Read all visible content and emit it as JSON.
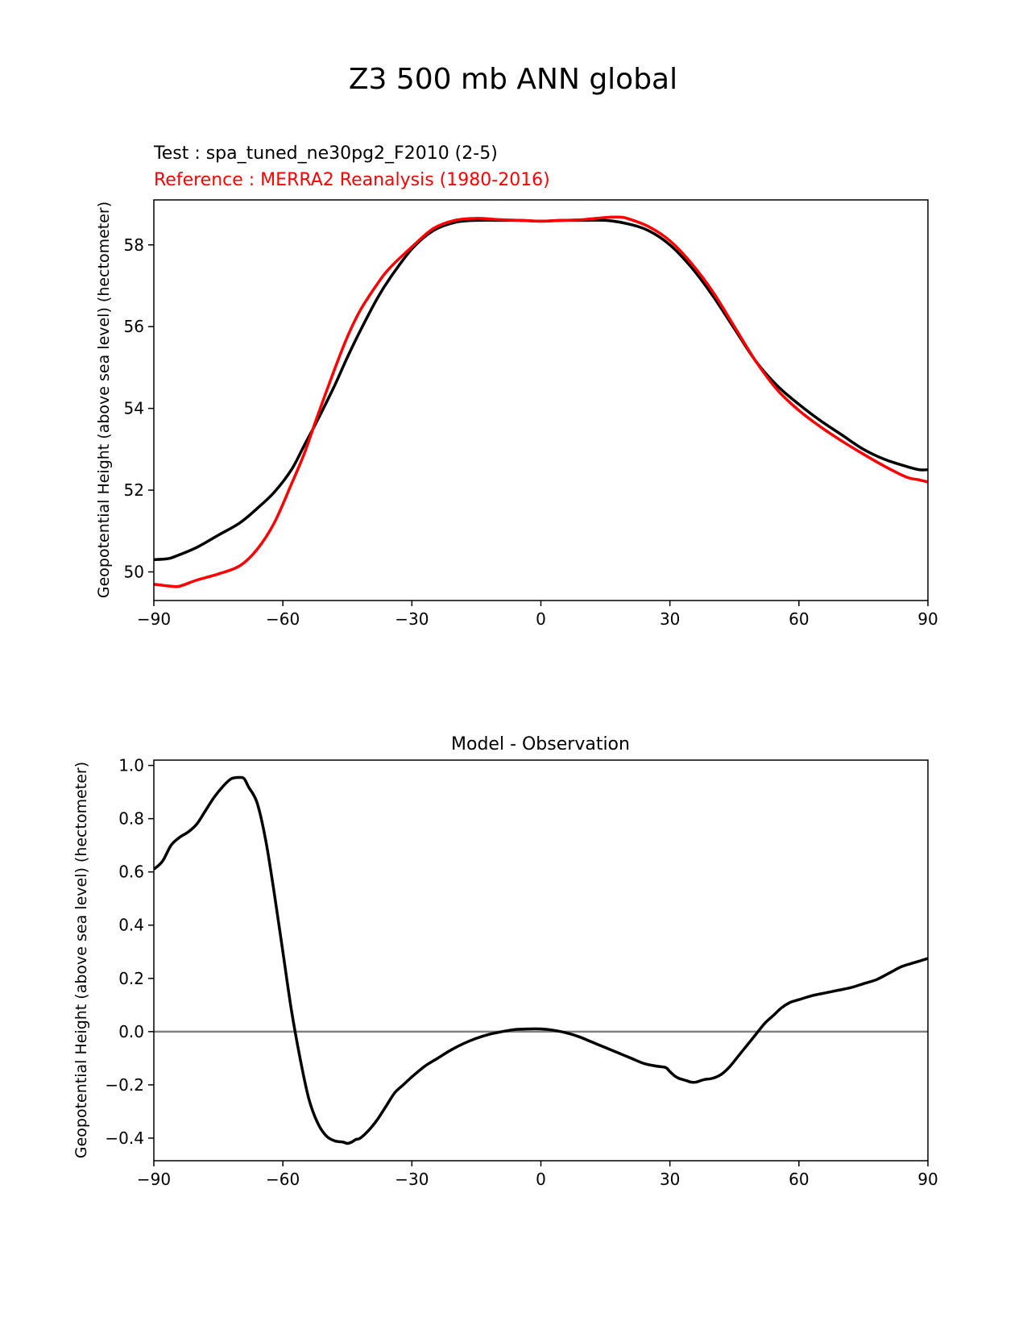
{
  "figure": {
    "title": "Z3 500 mb ANN global"
  },
  "chart_data": [
    {
      "type": "line",
      "test_label": "Test : spa_tuned_ne30pg2_F2010 (2-5)",
      "reference_label": "Reference : MERRA2 Reanalysis (1980-2016)",
      "ylabel": "Geopotential Height (above sea level) (hectometer)",
      "xlim": [
        -90,
        90
      ],
      "ylim": [
        49.3,
        59.1
      ],
      "xticks": [
        -90,
        -60,
        -30,
        0,
        30,
        60,
        90
      ],
      "xtick_labels": [
        "−90",
        "−60",
        "−30",
        "0",
        "30",
        "60",
        "90"
      ],
      "yticks": [
        50,
        52,
        54,
        56,
        58
      ],
      "ytick_labels": [
        "50",
        "52",
        "54",
        "56",
        "58"
      ],
      "series": [
        {
          "color": "#000000",
          "x": [
            -90,
            -87,
            -85,
            -80,
            -75,
            -70,
            -66,
            -62,
            -58,
            -55,
            -52,
            -48,
            -45,
            -42,
            -38,
            -35,
            -30,
            -25,
            -20,
            -15,
            -10,
            -5,
            0,
            5,
            10,
            15,
            20,
            25,
            30,
            35,
            40,
            45,
            50,
            55,
            60,
            65,
            70,
            75,
            80,
            85,
            88,
            90
          ],
          "y": [
            50.3,
            50.32,
            50.38,
            50.6,
            50.9,
            51.2,
            51.55,
            51.95,
            52.5,
            53.1,
            53.7,
            54.55,
            55.25,
            55.9,
            56.7,
            57.2,
            57.9,
            58.35,
            58.55,
            58.6,
            58.6,
            58.6,
            58.58,
            58.6,
            58.6,
            58.6,
            58.52,
            58.35,
            58.0,
            57.45,
            56.75,
            55.95,
            55.15,
            54.55,
            54.1,
            53.7,
            53.35,
            53.0,
            52.75,
            52.58,
            52.5,
            52.5
          ]
        },
        {
          "color": "#ff0000",
          "x": [
            -90,
            -86,
            -84,
            -80,
            -75,
            -70,
            -66,
            -62,
            -58,
            -55,
            -52,
            -48,
            -45,
            -42,
            -38,
            -35,
            -30,
            -25,
            -20,
            -15,
            -10,
            -5,
            0,
            5,
            10,
            15,
            18,
            20,
            25,
            30,
            35,
            40,
            45,
            50,
            55,
            60,
            65,
            70,
            75,
            80,
            85,
            88,
            90
          ],
          "y": [
            49.7,
            49.65,
            49.65,
            49.8,
            49.95,
            50.15,
            50.55,
            51.2,
            52.15,
            52.9,
            53.8,
            54.95,
            55.75,
            56.4,
            57.05,
            57.45,
            57.95,
            58.4,
            58.6,
            58.65,
            58.62,
            58.6,
            58.58,
            58.6,
            58.62,
            58.67,
            58.68,
            58.65,
            58.45,
            58.1,
            57.55,
            56.85,
            56.0,
            55.15,
            54.45,
            53.95,
            53.55,
            53.2,
            52.88,
            52.58,
            52.32,
            52.25,
            52.2
          ]
        }
      ]
    },
    {
      "type": "line",
      "title": "Model - Observation",
      "ylabel": "Geopotential Height (above sea level) (hectometer)",
      "xlim": [
        -90,
        90
      ],
      "ylim": [
        -0.485,
        1.02
      ],
      "xticks": [
        -90,
        -60,
        -30,
        0,
        30,
        60,
        90
      ],
      "xtick_labels": [
        "−90",
        "−60",
        "−30",
        "0",
        "30",
        "60",
        "90"
      ],
      "yticks": [
        -0.4,
        -0.2,
        0.0,
        0.2,
        0.4,
        0.6,
        0.8,
        1.0
      ],
      "ytick_labels": [
        "−0.4",
        "−0.2",
        "0.0",
        "0.2",
        "0.4",
        "0.6",
        "0.8",
        "1.0"
      ],
      "zero_line": true,
      "series": [
        {
          "color": "#000000",
          "x": [
            -90,
            -88,
            -86,
            -84,
            -82,
            -80,
            -78,
            -76,
            -74,
            -72,
            -70,
            -69,
            -68,
            -66,
            -64,
            -62,
            -60,
            -58,
            -56,
            -54,
            -52,
            -50,
            -48,
            -46,
            -45,
            -44,
            -43,
            -42,
            -40,
            -38,
            -36,
            -34,
            -32,
            -30,
            -27,
            -24,
            -21,
            -18,
            -15,
            -12,
            -9,
            -6,
            -3,
            0,
            3,
            6,
            9,
            12,
            15,
            18,
            21,
            24,
            27,
            29,
            30,
            31,
            32,
            33,
            34,
            35,
            36,
            37,
            38,
            40,
            42,
            44,
            46,
            48,
            50,
            52,
            54,
            56,
            58,
            60,
            63,
            66,
            69,
            72,
            75,
            78,
            81,
            84,
            87,
            90
          ],
          "y": [
            0.61,
            0.64,
            0.7,
            0.73,
            0.75,
            0.78,
            0.83,
            0.88,
            0.92,
            0.95,
            0.955,
            0.95,
            0.92,
            0.86,
            0.72,
            0.52,
            0.3,
            0.08,
            -0.1,
            -0.25,
            -0.34,
            -0.39,
            -0.41,
            -0.415,
            -0.42,
            -0.415,
            -0.405,
            -0.4,
            -0.37,
            -0.33,
            -0.28,
            -0.23,
            -0.2,
            -0.17,
            -0.13,
            -0.1,
            -0.07,
            -0.045,
            -0.025,
            -0.01,
            0.0,
            0.008,
            0.01,
            0.01,
            0.005,
            -0.005,
            -0.02,
            -0.04,
            -0.06,
            -0.08,
            -0.1,
            -0.12,
            -0.13,
            -0.135,
            -0.15,
            -0.165,
            -0.175,
            -0.18,
            -0.185,
            -0.19,
            -0.19,
            -0.185,
            -0.18,
            -0.175,
            -0.16,
            -0.13,
            -0.09,
            -0.05,
            -0.01,
            0.03,
            0.06,
            0.09,
            0.11,
            0.12,
            0.135,
            0.145,
            0.155,
            0.165,
            0.18,
            0.195,
            0.22,
            0.245,
            0.26,
            0.275
          ]
        }
      ]
    }
  ]
}
